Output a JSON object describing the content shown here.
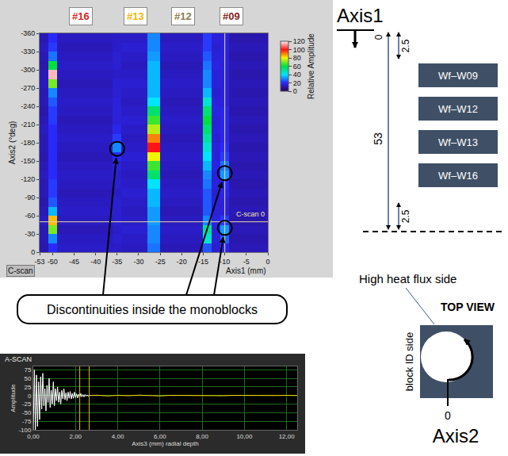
{
  "chart_data": [
    {
      "type": "heatmap",
      "title": "C-scan",
      "xlabel": "Axis1 (mm)",
      "ylabel": "Axis2 (°deg)",
      "x_edges": [
        -53,
        -51,
        -49,
        -36,
        -34,
        -28,
        -25,
        -15,
        -13,
        -11,
        -9,
        0
      ],
      "y_edges": [
        -360,
        -345,
        -330,
        -315,
        -300,
        -285,
        -270,
        -255,
        -240,
        -225,
        -210,
        -195,
        -180,
        -165,
        -150,
        -135,
        -120,
        -105,
        -90,
        -75,
        -60,
        -45,
        -30,
        -15,
        0
      ],
      "cells": [
        [
          12,
          20,
          13,
          14,
          14,
          30,
          13,
          22,
          16,
          16,
          11
        ],
        [
          13,
          22,
          12,
          14,
          15,
          30,
          14,
          22,
          15,
          16,
          12
        ],
        [
          12,
          28,
          13,
          15,
          14,
          32,
          13,
          25,
          16,
          16,
          11
        ],
        [
          11,
          60,
          14,
          15,
          13,
          35,
          12,
          28,
          17,
          16,
          12
        ],
        [
          12,
          115,
          13,
          14,
          14,
          35,
          13,
          30,
          16,
          16,
          11
        ],
        [
          13,
          70,
          12,
          15,
          15,
          35,
          14,
          30,
          16,
          16,
          12
        ],
        [
          12,
          30,
          13,
          15,
          14,
          35,
          13,
          35,
          15,
          16,
          11
        ],
        [
          12,
          25,
          14,
          16,
          13,
          40,
          12,
          45,
          16,
          16,
          12
        ],
        [
          11,
          22,
          13,
          16,
          14,
          55,
          13,
          55,
          17,
          18,
          11
        ],
        [
          12,
          22,
          12,
          16,
          15,
          65,
          14,
          60,
          16,
          18,
          12
        ],
        [
          13,
          20,
          13,
          18,
          14,
          75,
          13,
          55,
          16,
          18,
          11
        ],
        [
          12,
          20,
          14,
          22,
          13,
          90,
          12,
          50,
          15,
          18,
          12
        ],
        [
          12,
          20,
          13,
          30,
          14,
          100,
          13,
          45,
          16,
          20,
          11
        ],
        [
          11,
          20,
          12,
          20,
          15,
          80,
          14,
          40,
          16,
          22,
          12
        ],
        [
          12,
          20,
          13,
          16,
          14,
          65,
          13,
          35,
          17,
          28,
          11
        ],
        [
          13,
          20,
          14,
          15,
          13,
          55,
          12,
          30,
          16,
          32,
          12
        ],
        [
          12,
          22,
          13,
          15,
          14,
          40,
          13,
          28,
          16,
          20,
          11
        ],
        [
          12,
          22,
          12,
          14,
          15,
          35,
          14,
          25,
          15,
          18,
          12
        ],
        [
          11,
          25,
          13,
          15,
          14,
          35,
          13,
          25,
          16,
          16,
          11
        ],
        [
          12,
          35,
          14,
          15,
          13,
          32,
          12,
          25,
          16,
          16,
          12
        ],
        [
          13,
          85,
          13,
          15,
          14,
          32,
          13,
          30,
          17,
          22,
          11
        ],
        [
          12,
          70,
          12,
          14,
          15,
          30,
          14,
          50,
          16,
          32,
          12
        ],
        [
          12,
          30,
          13,
          15,
          14,
          30,
          13,
          45,
          16,
          26,
          11
        ],
        [
          11,
          20,
          14,
          14,
          13,
          28,
          12,
          25,
          15,
          18,
          12
        ]
      ],
      "xlim": [
        -53,
        0
      ],
      "ylim": [
        0,
        -360
      ],
      "xticks": [
        -53,
        -50,
        -45,
        -40,
        -35,
        -30,
        -25,
        -20,
        -15,
        -10,
        -5,
        0
      ],
      "yticks": [
        -360,
        -330,
        -300,
        -270,
        -240,
        -210,
        -180,
        -150,
        -120,
        -90,
        -60,
        -30,
        0
      ],
      "grid": false,
      "colorbar": {
        "title": "Relative Amplitude",
        "range": [
          0,
          120
        ],
        "ticks": [
          0,
          20,
          40,
          60,
          80,
          100,
          120
        ]
      },
      "cursor": {
        "x": -10,
        "y": -50,
        "label": "C-scan 0"
      },
      "block_labels": [
        {
          "text": "#16",
          "color": "#d62728"
        },
        {
          "text": "#13",
          "color": "#f2b705"
        },
        {
          "text": "#12",
          "color": "#8c7d4a"
        },
        {
          "text": "#09",
          "color": "#8b1e1e"
        }
      ],
      "discontinuities": {
        "label": "Discontinuities inside the monoblocks",
        "points": [
          {
            "x": -35,
            "y": -170
          },
          {
            "x": -10,
            "y": -130
          },
          {
            "x": -10,
            "y": -40
          }
        ]
      }
    },
    {
      "type": "line",
      "title": "A-SCAN",
      "xlabel": "Axis3 (mm) radial depth",
      "ylabel": "Amplitude",
      "series": [
        {
          "color": "#ffffff",
          "x": [
            0,
            0.05,
            0.1,
            0.15,
            0.2,
            0.25,
            0.3,
            0.35,
            0.4,
            0.45,
            0.5,
            0.55,
            0.6,
            0.65,
            0.7,
            0.75,
            0.8,
            0.85,
            0.9,
            0.95,
            1,
            1.05,
            1.1,
            1.15,
            1.2,
            1.25,
            1.3,
            1.35,
            1.4,
            1.45,
            1.5,
            1.55,
            1.6,
            1.65,
            1.7,
            1.75,
            1.8,
            1.85,
            1.9,
            1.95,
            2,
            2.05,
            2.1,
            2.15,
            2.2,
            2.25,
            2.3,
            2.35,
            2.4,
            2.45,
            2.5,
            2.55,
            2.6,
            2.65,
            2.7
          ],
          "values": [
            -100,
            75,
            -100,
            60,
            -90,
            40,
            -70,
            55,
            -40,
            65,
            -30,
            20,
            -45,
            30,
            -20,
            50,
            -35,
            15,
            -25,
            40,
            -30,
            20,
            -15,
            25,
            -20,
            10,
            -25,
            15,
            -10,
            20,
            -12,
            8,
            -15,
            10,
            -8,
            12,
            -10,
            6,
            -8,
            10,
            -6,
            5,
            -7,
            4,
            -5,
            6,
            -4,
            3,
            -4,
            3,
            -2,
            2,
            -2,
            1,
            0
          ]
        },
        {
          "color": "#ffe600",
          "x": [
            2.7,
            3,
            3.5,
            4,
            4.5,
            5,
            5.5,
            6,
            6.5,
            7,
            7.5,
            8,
            8.5,
            9,
            9.5,
            10,
            10.5,
            11,
            11.5,
            12,
            12.5
          ],
          "values": [
            0,
            1,
            -1,
            0.5,
            -0.5,
            1,
            0,
            -1,
            0.5,
            0,
            -0.5,
            0.5,
            0,
            -0.5,
            0.5,
            0,
            0.5,
            -0.5,
            0,
            0.5,
            0
          ]
        }
      ],
      "gates": [
        2.2,
        2.65
      ],
      "xlim": [
        0,
        12.5
      ],
      "ylim": [
        -100,
        85
      ],
      "xticks": [
        {
          "value": 0,
          "label": "0,00"
        },
        {
          "value": 2,
          "label": "2,00"
        },
        {
          "value": 4,
          "label": "4,00"
        },
        {
          "value": 6,
          "label": "6,00"
        },
        {
          "value": 8,
          "label": "8,00"
        },
        {
          "value": 10,
          "label": "10,00"
        },
        {
          "value": 12,
          "label": "12,00"
        }
      ],
      "yticks": [
        -100,
        -75,
        -50,
        -25,
        0,
        25,
        50,
        75
      ],
      "grid": true
    }
  ],
  "diagram": {
    "axis1": {
      "label": "Axis1",
      "origin": 0,
      "length": 53,
      "end_gaps": [
        2.5,
        2.5
      ],
      "blocks": [
        "Wf–W09",
        "Wf–W12",
        "Wf–W13",
        "Wf–W16"
      ]
    },
    "top_view": {
      "title": "TOP VIEW",
      "high_heat_flux_label": "High heat flux side",
      "block_id_label": "block ID side",
      "axis2_label": "Axis2",
      "axis2_origin": 0
    }
  }
}
